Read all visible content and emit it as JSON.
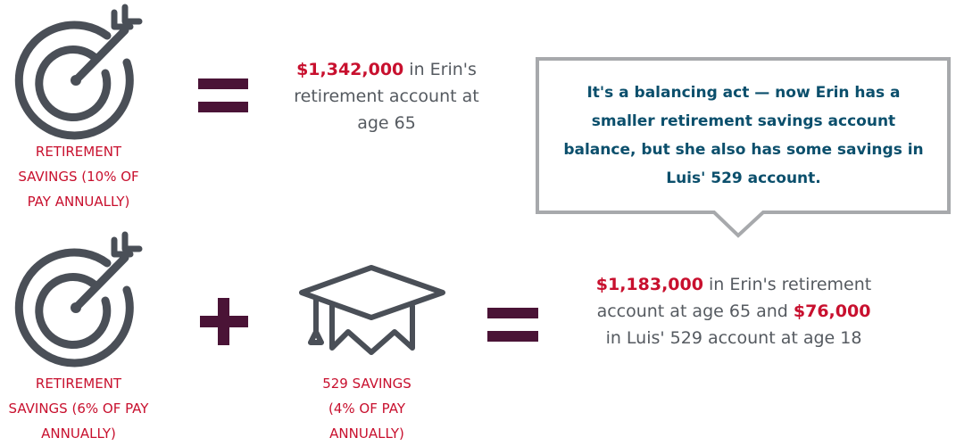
{
  "row1": {
    "label": "RETIREMENT SAVINGS (10% OF PAY ANNUALLY)",
    "result": {
      "amount": "$1,342,000",
      "text": " in Erin's retirement account at age 65"
    }
  },
  "callout": "It's a balancing act — now Erin has a smaller retirement savings account balance, but she also has some savings in Luis' 529 account.",
  "row2": {
    "retirement_label": "RETIREMENT SAVINGS (6% OF PAY ANNUALLY)",
    "education_label": "529 SAVINGS (4% OF PAY ANNUALLY)",
    "result": {
      "amount_1": "$1,183,000",
      "text_1": " in Erin's retirement account at age 65 and ",
      "amount_2": "$76,000",
      "text_2": " in Luis' 529 account at age 18"
    }
  }
}
